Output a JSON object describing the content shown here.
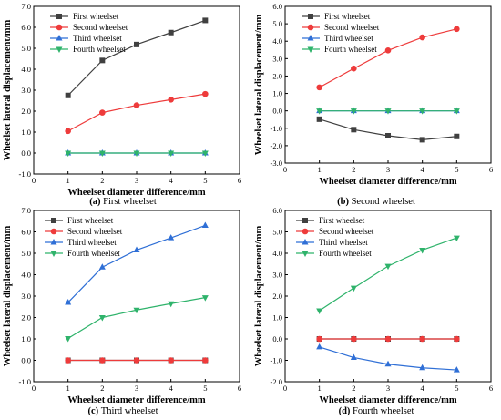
{
  "chart_data": [
    {
      "type": "line",
      "caption_letter": "(a)",
      "caption_text": "First wheelset",
      "xlabel": "Wheelset diameter difference/mm",
      "ylabel": "Wheelset lateral displacement/mm",
      "xlim": [
        0,
        6
      ],
      "ylim": [
        -1.0,
        7.0
      ],
      "xticks": [
        "0",
        "1",
        "2",
        "3",
        "4",
        "5",
        "6"
      ],
      "yticks": [
        "-1.0",
        "0.0",
        "1.0",
        "2.0",
        "3.0",
        "4.0",
        "5.0",
        "6.0",
        "7.0"
      ],
      "legend_position": "top-right",
      "x": [
        1,
        2,
        3,
        4,
        5
      ],
      "series": [
        {
          "name": "First wheelset",
          "color": "#404040",
          "marker": "square",
          "values": [
            2.75,
            4.42,
            5.18,
            5.75,
            6.33
          ]
        },
        {
          "name": "Second wheelset",
          "color": "#ee3b3b",
          "marker": "circle",
          "values": [
            1.05,
            1.93,
            2.28,
            2.55,
            2.82
          ]
        },
        {
          "name": "Third wheelset",
          "color": "#2f6fd6",
          "marker": "triangle-up",
          "values": [
            0.0,
            0.0,
            0.0,
            0.0,
            0.0
          ]
        },
        {
          "name": "Fourth wheelset",
          "color": "#2fb36b",
          "marker": "triangle-down",
          "values": [
            0.0,
            0.0,
            0.0,
            0.0,
            0.0
          ]
        }
      ]
    },
    {
      "type": "line",
      "caption_letter": "(b)",
      "caption_text": "Second wheelset",
      "xlabel": "Wheelset diameter difference/mm",
      "ylabel": "Wheelset lateral displacement/mm",
      "xlim": [
        0,
        6
      ],
      "ylim": [
        -3.0,
        6.0
      ],
      "xticks": [
        "0",
        "1",
        "2",
        "3",
        "4",
        "5",
        "6"
      ],
      "yticks": [
        "-3.0",
        "-2.0",
        "-1.0",
        "0.0",
        "1.0",
        "2.0",
        "3.0",
        "4.0",
        "5.0",
        "6.0"
      ],
      "legend_position": "top-right",
      "x": [
        1,
        2,
        3,
        4,
        5
      ],
      "series": [
        {
          "name": "First wheelset",
          "color": "#404040",
          "marker": "square",
          "values": [
            -0.48,
            -1.08,
            -1.43,
            -1.66,
            -1.47
          ]
        },
        {
          "name": "Second wheelset",
          "color": "#ee3b3b",
          "marker": "circle",
          "values": [
            1.35,
            2.43,
            3.47,
            4.22,
            4.7
          ]
        },
        {
          "name": "Third wheelset",
          "color": "#2f6fd6",
          "marker": "triangle-up",
          "values": [
            0.0,
            0.0,
            0.0,
            0.0,
            0.0
          ]
        },
        {
          "name": "Fourth wheelset",
          "color": "#2fb36b",
          "marker": "triangle-down",
          "values": [
            0.0,
            0.0,
            0.0,
            0.0,
            0.0
          ]
        }
      ]
    },
    {
      "type": "line",
      "caption_letter": "(c)",
      "caption_text": "Third wheelset",
      "xlabel": "Wheelset diameter difference/mm",
      "ylabel": "Wheelset lateral displacement/mm",
      "xlim": [
        0,
        6
      ],
      "ylim": [
        -1.0,
        7.0
      ],
      "xticks": [
        "0",
        "1",
        "2",
        "3",
        "4",
        "5",
        "6"
      ],
      "yticks": [
        "-1.0",
        "0.0",
        "1.0",
        "2.0",
        "3.0",
        "4.0",
        "5.0",
        "6.0",
        "7.0"
      ],
      "legend_position": "top-left",
      "x": [
        1,
        2,
        3,
        4,
        5
      ],
      "series": [
        {
          "name": "First wheelset",
          "color": "#404040",
          "marker": "square",
          "values": [
            0.0,
            0.0,
            0.0,
            0.0,
            0.0
          ]
        },
        {
          "name": "Second wheelset",
          "color": "#ee3b3b",
          "marker": "circle",
          "values": [
            0.0,
            0.0,
            0.0,
            0.0,
            0.0
          ]
        },
        {
          "name": "Third wheelset",
          "color": "#2f6fd6",
          "marker": "triangle-up",
          "values": [
            2.7,
            4.35,
            5.15,
            5.72,
            6.3
          ]
        },
        {
          "name": "Fourth wheelset",
          "color": "#2fb36b",
          "marker": "triangle-down",
          "values": [
            1.02,
            2.0,
            2.35,
            2.65,
            2.93
          ]
        }
      ]
    },
    {
      "type": "line",
      "caption_letter": "(d)",
      "caption_text": "Fourth wheelset",
      "xlabel": "Wheelset diameter difference/mm",
      "ylabel": "Wheelset lateral displacement/mm",
      "xlim": [
        0,
        6
      ],
      "ylim": [
        -2.0,
        6.0
      ],
      "xticks": [
        "0",
        "1",
        "2",
        "3",
        "4",
        "5",
        "6"
      ],
      "yticks": [
        "-2.0",
        "-1.0",
        "0.0",
        "1.0",
        "2.0",
        "3.0",
        "4.0",
        "5.0",
        "6.0"
      ],
      "legend_position": "top-left",
      "x": [
        1,
        2,
        3,
        4,
        5
      ],
      "series": [
        {
          "name": "First wheelset",
          "color": "#404040",
          "marker": "square",
          "values": [
            0.0,
            0.0,
            0.0,
            0.0,
            0.0
          ]
        },
        {
          "name": "Second wheelset",
          "color": "#ee3b3b",
          "marker": "circle",
          "values": [
            0.0,
            0.0,
            0.0,
            0.0,
            0.0
          ]
        },
        {
          "name": "Third wheelset",
          "color": "#2f6fd6",
          "marker": "triangle-up",
          "values": [
            -0.38,
            -0.87,
            -1.18,
            -1.35,
            -1.45
          ]
        },
        {
          "name": "Fourth wheelset",
          "color": "#2fb36b",
          "marker": "triangle-down",
          "values": [
            1.32,
            2.38,
            3.4,
            4.15,
            4.72
          ]
        }
      ]
    }
  ]
}
